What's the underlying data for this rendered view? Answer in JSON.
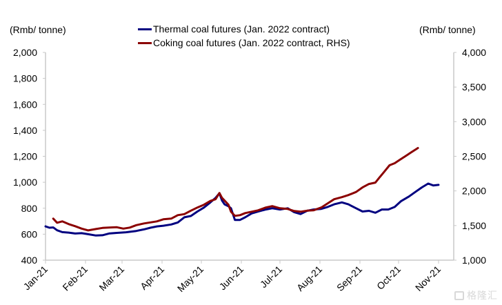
{
  "chart_data": {
    "type": "line",
    "title": "",
    "legend": [
      "Thermal coal futures (Jan. 2022 contract)",
      "Coking coal futures (Jan. 2022 contract, RHS)"
    ],
    "legend_position": "top-center",
    "ylabel_left": "(Rmb/ tonne)",
    "ylabel_right": "(Rmb/ tonne)",
    "ylim_left": [
      400,
      2000
    ],
    "ylim_right": [
      1000,
      4000
    ],
    "yticks_left": [
      "400",
      "600",
      "800",
      "1,000",
      "1,200",
      "1,400",
      "1,600",
      "1,800",
      "2,000"
    ],
    "yticks_right": [
      "1,000",
      "1,500",
      "2,000",
      "2,500",
      "3,000",
      "3,500",
      "4,000"
    ],
    "xticks": [
      "Jan-21",
      "Feb-21",
      "Mar-21",
      "Apr-21",
      "May-21",
      "Jun-21",
      "Jul-21",
      "Aug-21",
      "Sep-21",
      "Oct-21",
      "Nov-21"
    ],
    "x_unit": "day of 2021 (Jan-21 = 0)",
    "xlim": [
      0,
      305
    ],
    "grid": false,
    "series": [
      {
        "name": "Thermal coal futures (Jan. 2022 contract)",
        "axis": "left",
        "color": "#000080",
        "points": [
          [
            0,
            660
          ],
          [
            3,
            650
          ],
          [
            6,
            652
          ],
          [
            9,
            630
          ],
          [
            13,
            616
          ],
          [
            18,
            612
          ],
          [
            23,
            605
          ],
          [
            28,
            608
          ],
          [
            33,
            600
          ],
          [
            39,
            590
          ],
          [
            44,
            592
          ],
          [
            49,
            605
          ],
          [
            55,
            610
          ],
          [
            62,
            615
          ],
          [
            70,
            625
          ],
          [
            76,
            637
          ],
          [
            81,
            650
          ],
          [
            86,
            660
          ],
          [
            91,
            665
          ],
          [
            97,
            675
          ],
          [
            102,
            690
          ],
          [
            107,
            730
          ],
          [
            112,
            740
          ],
          [
            117,
            775
          ],
          [
            122,
            805
          ],
          [
            127,
            845
          ],
          [
            131,
            880
          ],
          [
            134,
            915
          ],
          [
            136,
            860
          ],
          [
            138,
            830
          ],
          [
            141,
            815
          ],
          [
            143,
            800
          ],
          [
            146,
            710
          ],
          [
            150,
            710
          ],
          [
            154,
            730
          ],
          [
            159,
            760
          ],
          [
            164,
            775
          ],
          [
            170,
            790
          ],
          [
            175,
            800
          ],
          [
            181,
            790
          ],
          [
            187,
            800
          ],
          [
            192,
            770
          ],
          [
            197,
            755
          ],
          [
            202,
            780
          ],
          [
            207,
            790
          ],
          [
            213,
            795
          ],
          [
            218,
            810
          ],
          [
            223,
            830
          ],
          [
            229,
            845
          ],
          [
            234,
            830
          ],
          [
            240,
            800
          ],
          [
            245,
            775
          ],
          [
            250,
            780
          ],
          [
            255,
            765
          ],
          [
            260,
            790
          ],
          [
            265,
            790
          ],
          [
            270,
            810
          ],
          [
            275,
            855
          ],
          [
            281,
            890
          ],
          [
            286,
            925
          ],
          [
            291,
            960
          ],
          [
            296,
            990
          ],
          [
            300,
            975
          ],
          [
            304,
            980
          ]
        ]
      },
      {
        "name": "Coking coal futures (Jan. 2022 contract, RHS)",
        "axis": "right",
        "color": "#8b0000",
        "points": [
          [
            6,
            1600
          ],
          [
            9,
            1540
          ],
          [
            13,
            1560
          ],
          [
            18,
            1520
          ],
          [
            23,
            1490
          ],
          [
            28,
            1455
          ],
          [
            33,
            1430
          ],
          [
            39,
            1450
          ],
          [
            44,
            1465
          ],
          [
            49,
            1470
          ],
          [
            55,
            1475
          ],
          [
            60,
            1455
          ],
          [
            65,
            1470
          ],
          [
            70,
            1505
          ],
          [
            76,
            1530
          ],
          [
            81,
            1545
          ],
          [
            86,
            1560
          ],
          [
            91,
            1590
          ],
          [
            97,
            1600
          ],
          [
            102,
            1650
          ],
          [
            107,
            1665
          ],
          [
            112,
            1715
          ],
          [
            117,
            1760
          ],
          [
            122,
            1800
          ],
          [
            127,
            1855
          ],
          [
            131,
            1880
          ],
          [
            134,
            1970
          ],
          [
            136,
            1900
          ],
          [
            138,
            1860
          ],
          [
            141,
            1800
          ],
          [
            143,
            1700
          ],
          [
            146,
            1640
          ],
          [
            150,
            1650
          ],
          [
            154,
            1680
          ],
          [
            159,
            1700
          ],
          [
            164,
            1720
          ],
          [
            170,
            1760
          ],
          [
            175,
            1780
          ],
          [
            181,
            1750
          ],
          [
            187,
            1740
          ],
          [
            192,
            1710
          ],
          [
            197,
            1700
          ],
          [
            202,
            1715
          ],
          [
            207,
            1720
          ],
          [
            213,
            1760
          ],
          [
            218,
            1820
          ],
          [
            223,
            1880
          ],
          [
            229,
            1910
          ],
          [
            234,
            1940
          ],
          [
            240,
            1985
          ],
          [
            245,
            2050
          ],
          [
            250,
            2100
          ],
          [
            255,
            2120
          ],
          [
            258,
            2190
          ],
          [
            262,
            2280
          ],
          [
            266,
            2370
          ],
          [
            270,
            2400
          ],
          [
            274,
            2450
          ],
          [
            279,
            2510
          ],
          [
            283,
            2560
          ],
          [
            288,
            2620
          ]
        ]
      }
    ]
  },
  "labels": {
    "left_unit": "(Rmb/ tonne)",
    "right_unit": "(Rmb/ tonne)",
    "legend_thermal": "Thermal coal futures (Jan. 2022 contract)",
    "legend_coking": "Coking coal futures (Jan. 2022 contract, RHS)",
    "watermark": "格隆汇"
  }
}
